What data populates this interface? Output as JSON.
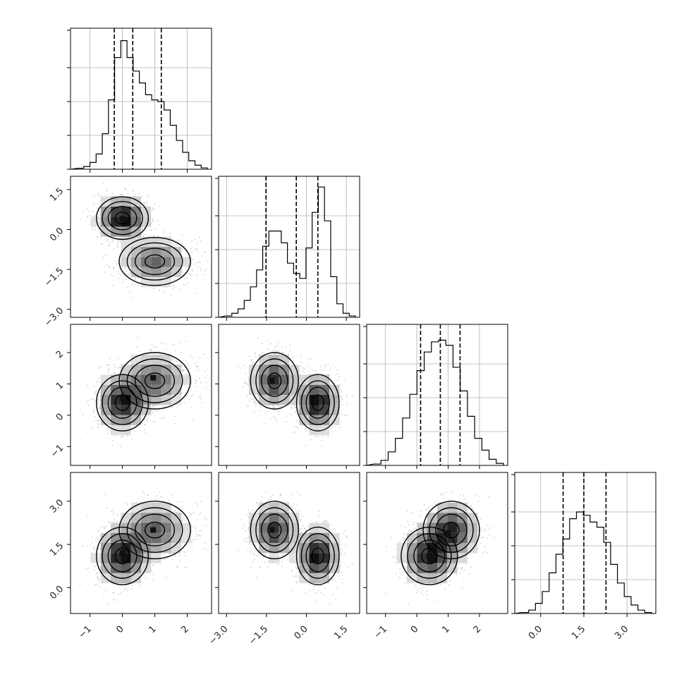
{
  "chart_data": {
    "type": "scatter",
    "layout": "corner",
    "title": "",
    "parameters": [
      {
        "range": [
          -1.6,
          2.75
        ],
        "ticks": [
          -1,
          0,
          1,
          2
        ],
        "tick_labels": [
          "−1",
          "0",
          "1",
          "2"
        ],
        "quantiles": [
          -0.25,
          0.32,
          1.2
        ],
        "hist_values": [
          0.3,
          0.8,
          2,
          4.5,
          10.5,
          20.5,
          33,
          38,
          33,
          29,
          25.5,
          22,
          20.5,
          20,
          17.5,
          13,
          8.5,
          5,
          2.5,
          1.2,
          0.4
        ]
      },
      {
        "range": [
          -3.3,
          2.0
        ],
        "ticks": [
          -3.0,
          -1.5,
          0.0,
          1.5
        ],
        "tick_labels": [
          "−3.0",
          "−1.5",
          "0.0",
          "1.5"
        ],
        "quantiles": [
          -1.52,
          -0.38,
          0.43
        ],
        "hist_values": [
          0.4,
          1.2,
          2.5,
          5,
          9,
          14,
          21,
          25.5,
          25.5,
          22,
          16,
          13,
          11.5,
          20.5,
          31,
          38.5,
          28.5,
          12,
          4,
          1.2,
          0.4
        ]
      },
      {
        "range": [
          -1.6,
          2.9
        ],
        "ticks": [
          -1,
          0,
          1,
          2
        ],
        "tick_labels": [
          "−1",
          "0",
          "1",
          "2"
        ],
        "quantiles": [
          0.12,
          0.75,
          1.38
        ],
        "hist_values": [
          0.4,
          1.5,
          4,
          8,
          14,
          21,
          28,
          33.5,
          36.5,
          37,
          35.5,
          29,
          22,
          14.5,
          8,
          4.5,
          1.8,
          0.6
        ]
      },
      {
        "range": [
          -0.9,
          4.0
        ],
        "ticks": [
          0.0,
          1.5,
          3.0
        ],
        "tick_labels": [
          "0.0",
          "1.5",
          "3.0"
        ],
        "quantiles": [
          0.78,
          1.5,
          2.27
        ],
        "hist_values": [
          0.3,
          1,
          3,
          6.5,
          12,
          17.5,
          22,
          28,
          30,
          29,
          27,
          25.5,
          21,
          14.5,
          9,
          5,
          2.5,
          1,
          0.3
        ]
      }
    ],
    "histogram_ticks": {
      "1": [
        10,
        20,
        30
      ],
      "2": [
        10,
        20,
        30
      ],
      "3": [
        10,
        20,
        30
      ],
      "4": [
        10,
        20,
        30
      ]
    },
    "scatter_components": [
      {
        "weight": 0.52,
        "mean": [
          0.0,
          0.43,
          0.4,
          1.1
        ],
        "sd": [
          0.4,
          0.4,
          0.45,
          0.5
        ]
      },
      {
        "weight": 0.48,
        "mean": [
          1.0,
          -1.2,
          1.1,
          2.0
        ],
        "sd": [
          0.55,
          0.45,
          0.45,
          0.5
        ]
      }
    ],
    "density_peaks": {
      "1-0": [
        [
          0.0,
          0.4
        ]
      ],
      "2-0": [
        [
          0.0,
          0.55
        ],
        [
          0.95,
          1.2
        ]
      ],
      "3-0": [
        [
          0.0,
          1.2
        ],
        [
          0.95,
          2.0
        ]
      ],
      "2-1": [
        [
          -1.3,
          1.1
        ],
        [
          0.35,
          0.4
        ]
      ],
      "3-1": [
        [
          -1.3,
          2.0
        ],
        [
          0.35,
          1.1
        ]
      ],
      "3-2": [
        [
          0.4,
          1.1
        ],
        [
          1.0,
          1.9
        ]
      ]
    },
    "grid": true,
    "colors": {
      "scatter": "#9a9a9a",
      "contour": "#000000",
      "histogram": "#000000",
      "grid": "#b0b0b0",
      "density_low": "#ffffff",
      "density_high": "#111111"
    }
  }
}
